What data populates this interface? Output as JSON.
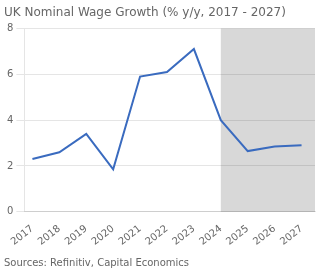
{
  "chart_data": {
    "type": "line",
    "title": "UK Nominal Wage Growth (% y/y, 2017 - 2027)",
    "source": "Sources: Refinitiv, Capital Economics",
    "x": [
      2017,
      2018,
      2019,
      2020,
      2021,
      2022,
      2023,
      2024,
      2025,
      2026,
      2027
    ],
    "values": [
      2.3,
      2.6,
      3.4,
      1.85,
      5.9,
      6.1,
      7.1,
      4.0,
      2.65,
      2.85,
      2.9
    ],
    "color": "#3a6bbf",
    "xlim": [
      2016.7,
      2027.5
    ],
    "xticks": [
      2017,
      2018,
      2019,
      2020,
      2021,
      2022,
      2023,
      2024,
      2025,
      2026,
      2027
    ],
    "ylim": [
      0,
      8
    ],
    "yticks": [
      0,
      2,
      4,
      6,
      8
    ],
    "grid": "y",
    "shaded": {
      "from": 2024,
      "color": "#d8d8d8"
    }
  }
}
